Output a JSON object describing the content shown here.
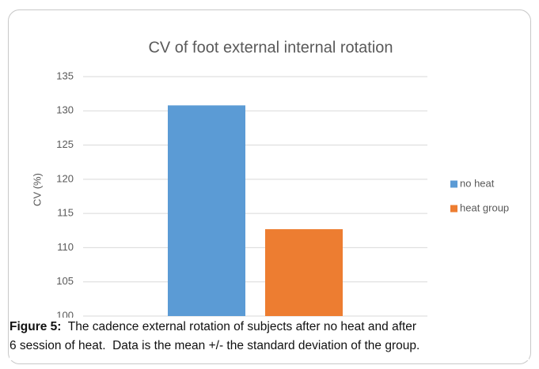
{
  "chart_data": {
    "type": "bar",
    "title": "CV of foot external internal rotation",
    "ylabel": "CV (%)",
    "categories": [
      null
    ],
    "series": [
      {
        "name": "no heat",
        "color": "#5b9bd5",
        "values": [
          130.8
        ]
      },
      {
        "name": "heat group",
        "color": "#ed7d31",
        "values": [
          112.7
        ]
      }
    ],
    "ylim": [
      100,
      135
    ],
    "yticks": [
      100,
      105,
      110,
      115,
      120,
      125,
      130,
      135
    ],
    "grid": true,
    "legend": "right"
  },
  "caption": {
    "label": "Figure 5:",
    "lines": [
      "  The cadence external rotation of subjects after no heat and after",
      "6 session of heat.  Data is the mean +/- the standard deviation of the group."
    ]
  }
}
